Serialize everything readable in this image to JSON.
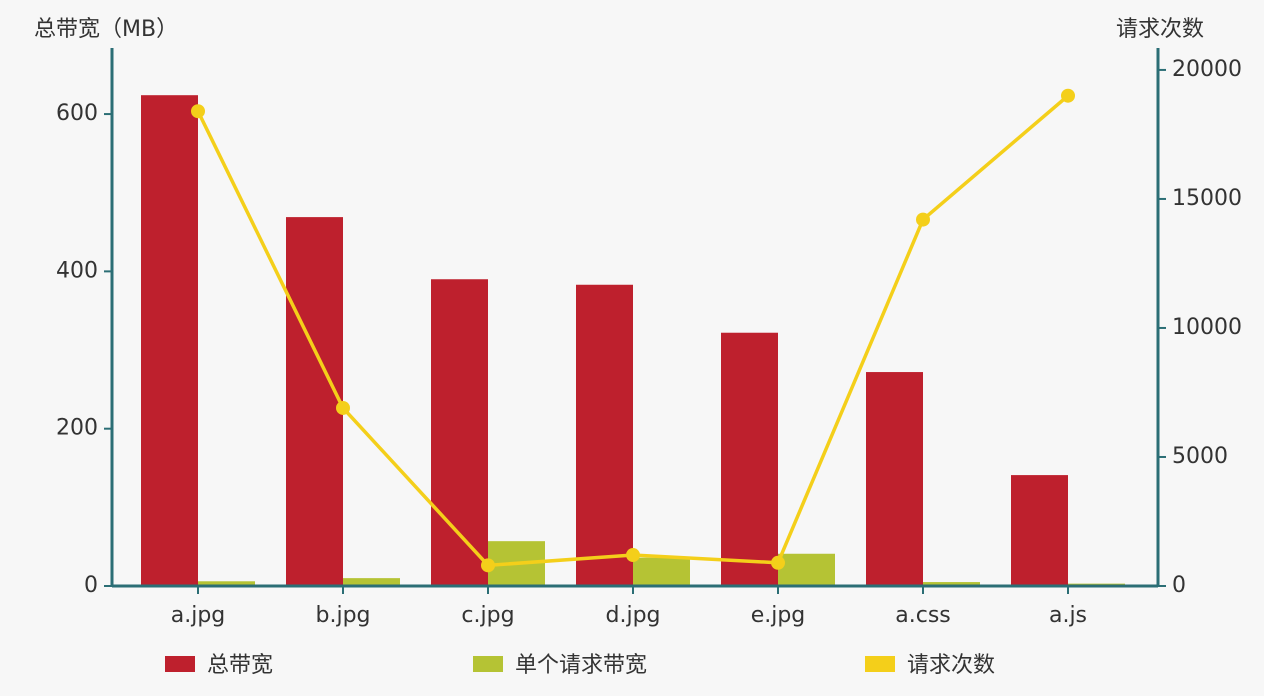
{
  "chart_data": {
    "type": "bar-line",
    "y_label": "总带宽（MB）",
    "y2_label": "请求次数",
    "categories": [
      "a.jpg",
      "b.jpg",
      "c.jpg",
      "d.jpg",
      "e.jpg",
      "a.css",
      "a.js"
    ],
    "series": [
      {
        "name": "总带宽",
        "type": "bar",
        "color": "#be202d",
        "values": [
          624,
          469,
          390,
          383,
          322,
          272,
          141
        ]
      },
      {
        "name": "单个请求带宽",
        "type": "bar",
        "color": "#b5c334",
        "values": [
          6,
          10,
          57,
          36,
          41,
          5,
          3
        ]
      },
      {
        "name": "请求次数",
        "type": "line",
        "axis": "y2",
        "color": "#f4cf1a",
        "values": [
          18400,
          6900,
          800,
          1200,
          900,
          14200,
          19000
        ]
      }
    ],
    "ylim": [
      0,
      684
    ],
    "yticks": [
      0,
      200,
      400,
      600
    ],
    "y2lim": [
      0,
      20850
    ],
    "y2ticks": [
      0,
      5000,
      10000,
      15000,
      20000
    ],
    "axis_color": "#2b6e75"
  }
}
